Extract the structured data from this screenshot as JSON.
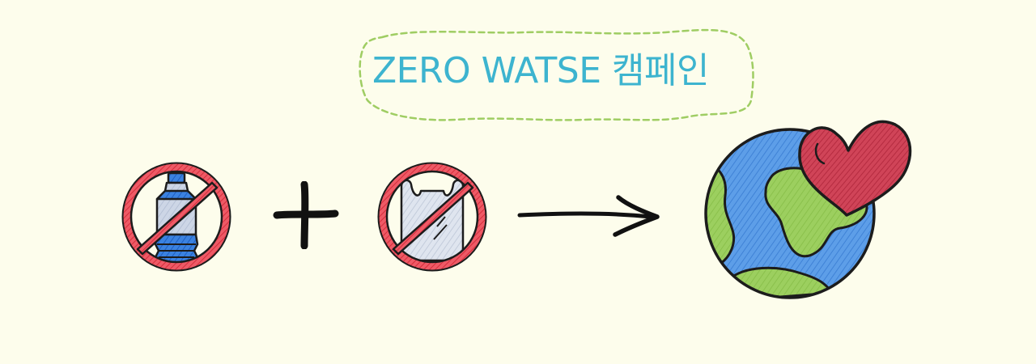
{
  "campaign": {
    "title": "ZERO WATSE 캠페인"
  },
  "icons": {
    "no_bottle": "no-plastic-bottle-icon",
    "plus": "plus-icon",
    "no_bag": "no-plastic-bag-icon",
    "arrow": "right-arrow-icon",
    "earth": "earth-with-heart-icon"
  },
  "colors": {
    "background": "#fdfdec",
    "title": "#3db4cf",
    "badge_border": "#9fcd63",
    "prohibition_red": "#e8414f",
    "bottle_blue": "#2f7ad8",
    "earth_blue": "#5d9ee8",
    "earth_green": "#9ccf5f",
    "heart_red": "#d04458",
    "outline": "#1c1c1c"
  }
}
